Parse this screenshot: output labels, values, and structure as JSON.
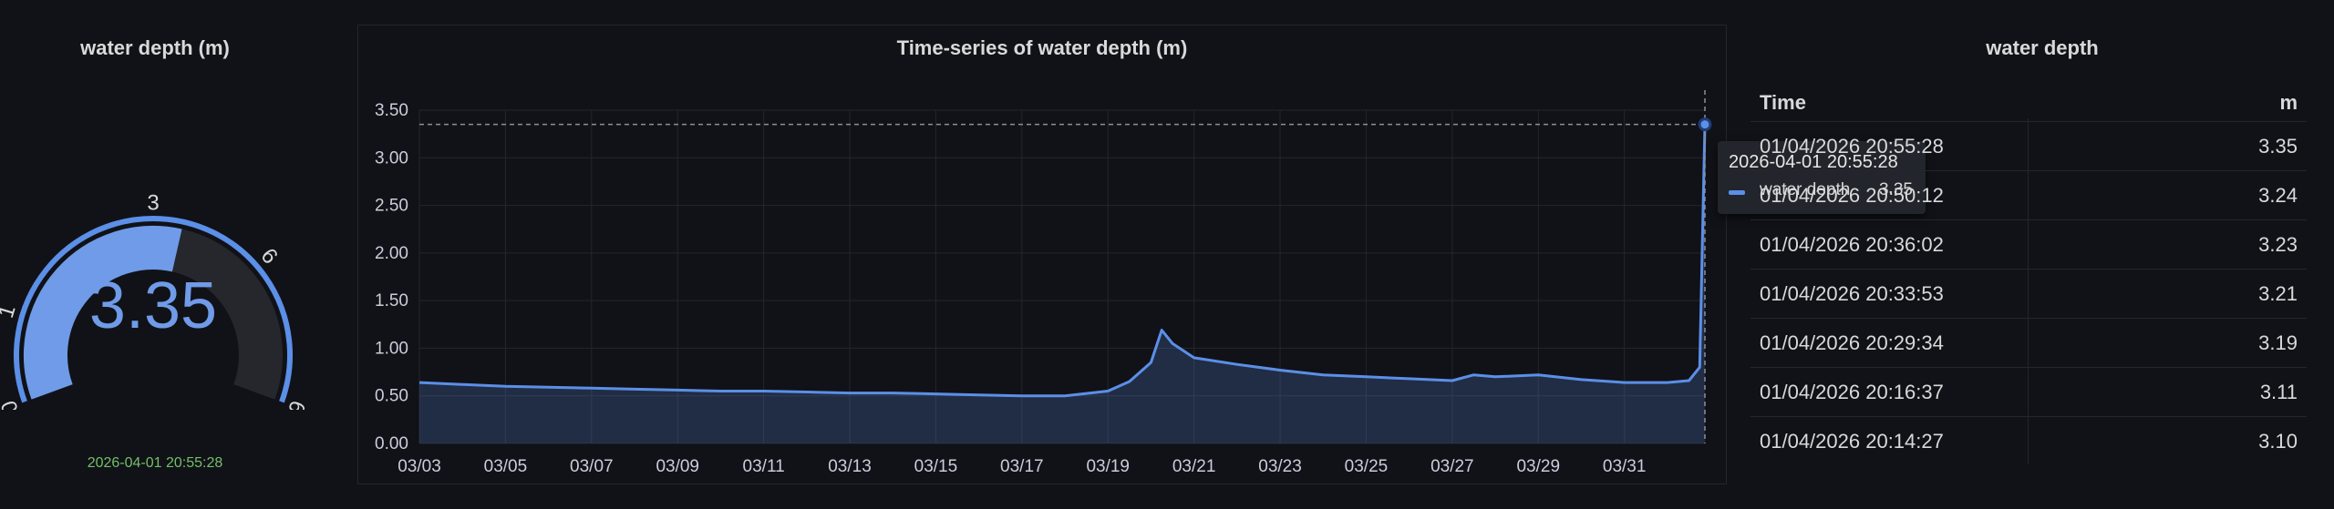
{
  "gauge": {
    "title": "water depth (m)",
    "value": "3.35",
    "value_num": 3.35,
    "min": 0,
    "max": 6,
    "tick_labels": [
      "0",
      "1",
      "3",
      "6",
      "6"
    ],
    "timestamp": "2026-04-01 20:55:28",
    "colors": {
      "fill": "#6f9be8",
      "track": "#26272d",
      "outer": "#5b8fe8",
      "value_text": "#6f9be8",
      "timestamp": "#73bf69"
    }
  },
  "timeseries": {
    "title": "Time-series of water depth (m)",
    "tooltip": {
      "time": "2026-04-01 20:55:28",
      "series": "water depth",
      "value": "3.35"
    }
  },
  "chart_data": {
    "type": "area",
    "title": "Time-series of water depth (m)",
    "xlabel": "",
    "ylabel": "",
    "ylim": [
      0,
      3.5
    ],
    "y_ticks": [
      "0.00",
      "0.50",
      "1.00",
      "1.50",
      "2.00",
      "2.50",
      "3.00",
      "3.50"
    ],
    "x_ticks": [
      "03/03",
      "03/05",
      "03/07",
      "03/09",
      "03/11",
      "03/13",
      "03/15",
      "03/17",
      "03/19",
      "03/21",
      "03/23",
      "03/25",
      "03/27",
      "03/29",
      "03/31"
    ],
    "grid": true,
    "color": "#5b8fe8",
    "series": [
      {
        "name": "water depth",
        "x": [
          "03/03",
          "03/04",
          "03/05",
          "03/06",
          "03/07",
          "03/08",
          "03/09",
          "03/10",
          "03/11",
          "03/12",
          "03/13",
          "03/14",
          "03/15",
          "03/16",
          "03/17",
          "03/18",
          "03/19",
          "03/19 12:00",
          "03/20 00:00",
          "03/20 06:00",
          "03/20 12:00",
          "03/21",
          "03/22",
          "03/23",
          "03/24",
          "03/25",
          "03/26",
          "03/27",
          "03/27 12:00",
          "03/28",
          "03/29",
          "03/30",
          "03/31",
          "04/01 00:00",
          "04/01 12:00",
          "04/01 18:00",
          "04/01 20:55"
        ],
        "values": [
          0.64,
          0.62,
          0.6,
          0.59,
          0.58,
          0.57,
          0.56,
          0.55,
          0.55,
          0.54,
          0.53,
          0.53,
          0.52,
          0.51,
          0.5,
          0.5,
          0.55,
          0.65,
          0.85,
          1.19,
          1.05,
          0.9,
          0.83,
          0.77,
          0.72,
          0.7,
          0.68,
          0.66,
          0.72,
          0.7,
          0.72,
          0.67,
          0.64,
          0.64,
          0.66,
          0.8,
          3.35
        ]
      }
    ]
  },
  "table": {
    "title": "water depth",
    "headers": {
      "time": "Time",
      "value": "m"
    },
    "rows": [
      {
        "time": "01/04/2026 20:55:28",
        "value": "3.35"
      },
      {
        "time": "01/04/2026 20:50:12",
        "value": "3.24"
      },
      {
        "time": "01/04/2026 20:36:02",
        "value": "3.23"
      },
      {
        "time": "01/04/2026 20:33:53",
        "value": "3.21"
      },
      {
        "time": "01/04/2026 20:29:34",
        "value": "3.19"
      },
      {
        "time": "01/04/2026 20:16:37",
        "value": "3.11"
      },
      {
        "time": "01/04/2026 20:14:27",
        "value": "3.10"
      }
    ]
  }
}
